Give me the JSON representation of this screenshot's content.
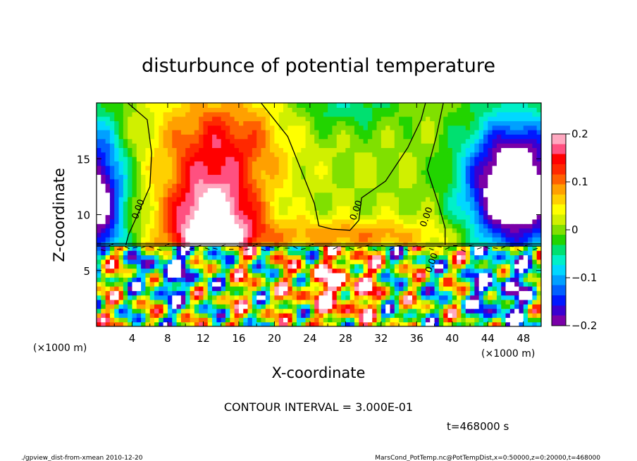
{
  "chart_data": {
    "type": "heatmap",
    "title": "disturbunce of potential temperature",
    "xlabel": "X-coordinate",
    "ylabel": "Z-coordinate",
    "x_unit": "(×1000 m)",
    "y_unit": "(×1000 m)",
    "xlim": [
      0,
      50
    ],
    "ylim": [
      0,
      20
    ],
    "x_ticks": [
      4,
      8,
      12,
      16,
      20,
      24,
      28,
      32,
      36,
      40,
      44,
      48
    ],
    "y_ticks": [
      5,
      10,
      15
    ],
    "colorbar": {
      "range": [
        -0.2,
        0.2
      ],
      "ticks": [
        {
          "value": 0.2,
          "label": "0.2"
        },
        {
          "value": 0.1,
          "label": "0.1"
        },
        {
          "value": 0,
          "label": "0"
        },
        {
          "value": -0.1,
          "label": "−0.1"
        },
        {
          "value": -0.2,
          "label": "−0.2"
        }
      ],
      "colors": [
        "#7a00a8",
        "#3a00d0",
        "#0018ff",
        "#0060ff",
        "#00a0ff",
        "#00d8ff",
        "#00f0c8",
        "#00e070",
        "#22d400",
        "#80e000",
        "#d0f000",
        "#ffff00",
        "#ffd000",
        "#ffa000",
        "#ff6000",
        "#ff2800",
        "#ff0000",
        "#ff5080",
        "#ffa8c0"
      ]
    },
    "contour_labels": [
      {
        "x": 5,
        "z": 10.4,
        "text": "0.00"
      },
      {
        "x": 29.5,
        "z": 10.3,
        "text": "0.00"
      },
      {
        "x": 37.4,
        "z": 9.7,
        "text": "0.00"
      },
      {
        "x": 38,
        "z": 5.6,
        "text": "0.00"
      }
    ],
    "interface_height": 7.3,
    "contour_interval_text": "CONTOUR INTERVAL = 3.000E-01",
    "time_text": "t=468000 s"
  },
  "footer": {
    "left": "./gpview_dist-from-xmean  2010-12-20",
    "right": "MarsCond_PotTemp.nc@PotTempDist,x=0:50000,z=0:20000,t=468000"
  }
}
